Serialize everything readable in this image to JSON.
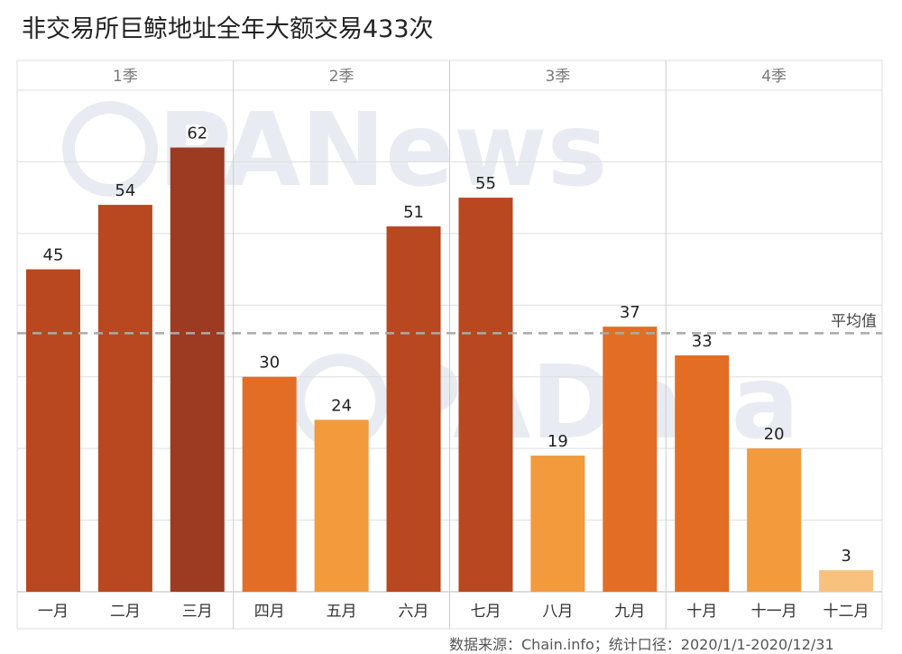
{
  "chart_data": {
    "type": "bar",
    "title": "非交易所巨鲸地址全年大额交易433次",
    "groups": [
      {
        "label": "1季",
        "categories": [
          "一月",
          "二月",
          "三月"
        ]
      },
      {
        "label": "2季",
        "categories": [
          "四月",
          "五月",
          "六月"
        ]
      },
      {
        "label": "3季",
        "categories": [
          "七月",
          "八月",
          "九月"
        ]
      },
      {
        "label": "4季",
        "categories": [
          "十月",
          "十一月",
          "十二月"
        ]
      }
    ],
    "categories": [
      "一月",
      "二月",
      "三月",
      "四月",
      "五月",
      "六月",
      "七月",
      "八月",
      "九月",
      "十月",
      "十一月",
      "十二月"
    ],
    "values": [
      45,
      54,
      62,
      30,
      24,
      51,
      55,
      19,
      37,
      33,
      20,
      3
    ],
    "ylim": [
      0,
      70
    ],
    "reference_line": {
      "label": "平均值",
      "value": 36.08
    },
    "grid": true,
    "watermarks": [
      "PANews",
      "PAData"
    ],
    "source": "数据来源：Chain.info；统计口径：2020/1/1-2020/12/31"
  },
  "colors": {
    "darkest": "#9c3a22",
    "dark": "#b9471f",
    "medium": "#e36d25",
    "light": "#f29a3c",
    "lightest": "#f8c27e",
    "grid": "#dddddd",
    "avg_line": "#aaaaaa"
  }
}
